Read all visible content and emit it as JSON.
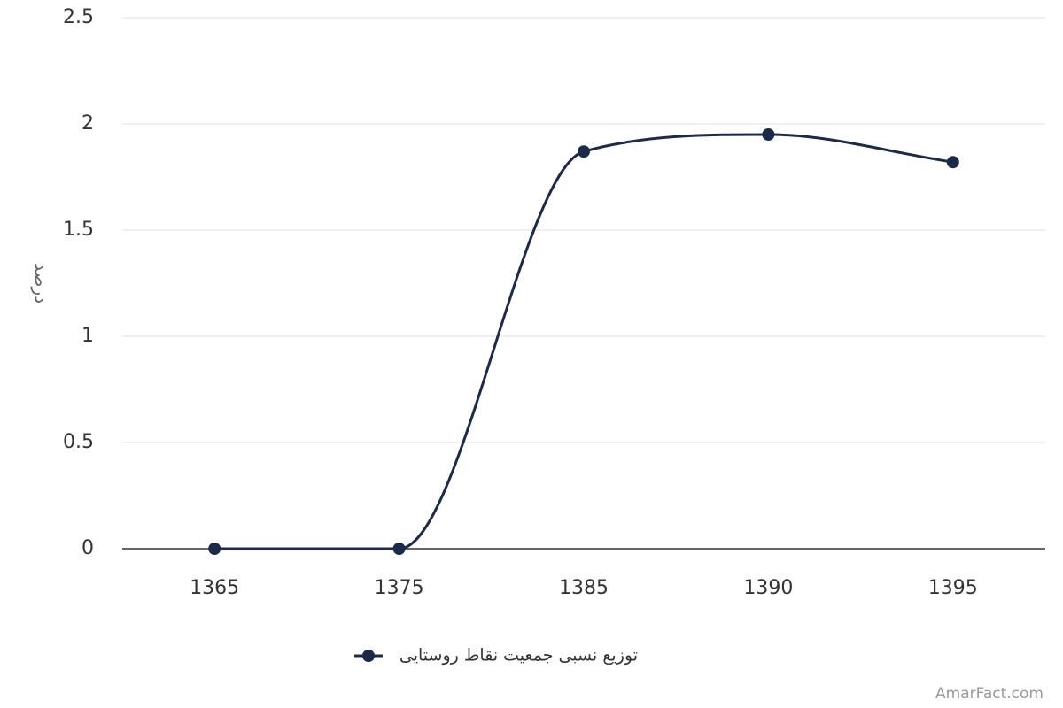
{
  "chart_data": {
    "type": "line",
    "y_label": "درصد",
    "categories": [
      "1365",
      "1375",
      "1385",
      "1390",
      "1395"
    ],
    "series": [
      {
        "name": "توزیع نسبی جمعیت نقاط روستایی",
        "color": "#1b2a4a",
        "values": [
          0,
          0,
          1.87,
          1.95,
          1.82
        ]
      }
    ],
    "ylim": [
      0,
      2.5
    ],
    "yticks": [
      0,
      0.5,
      1,
      1.5,
      2,
      2.5
    ],
    "grid": true,
    "smooth": true,
    "legend": "bottom",
    "credit": "AmarFact.com"
  }
}
